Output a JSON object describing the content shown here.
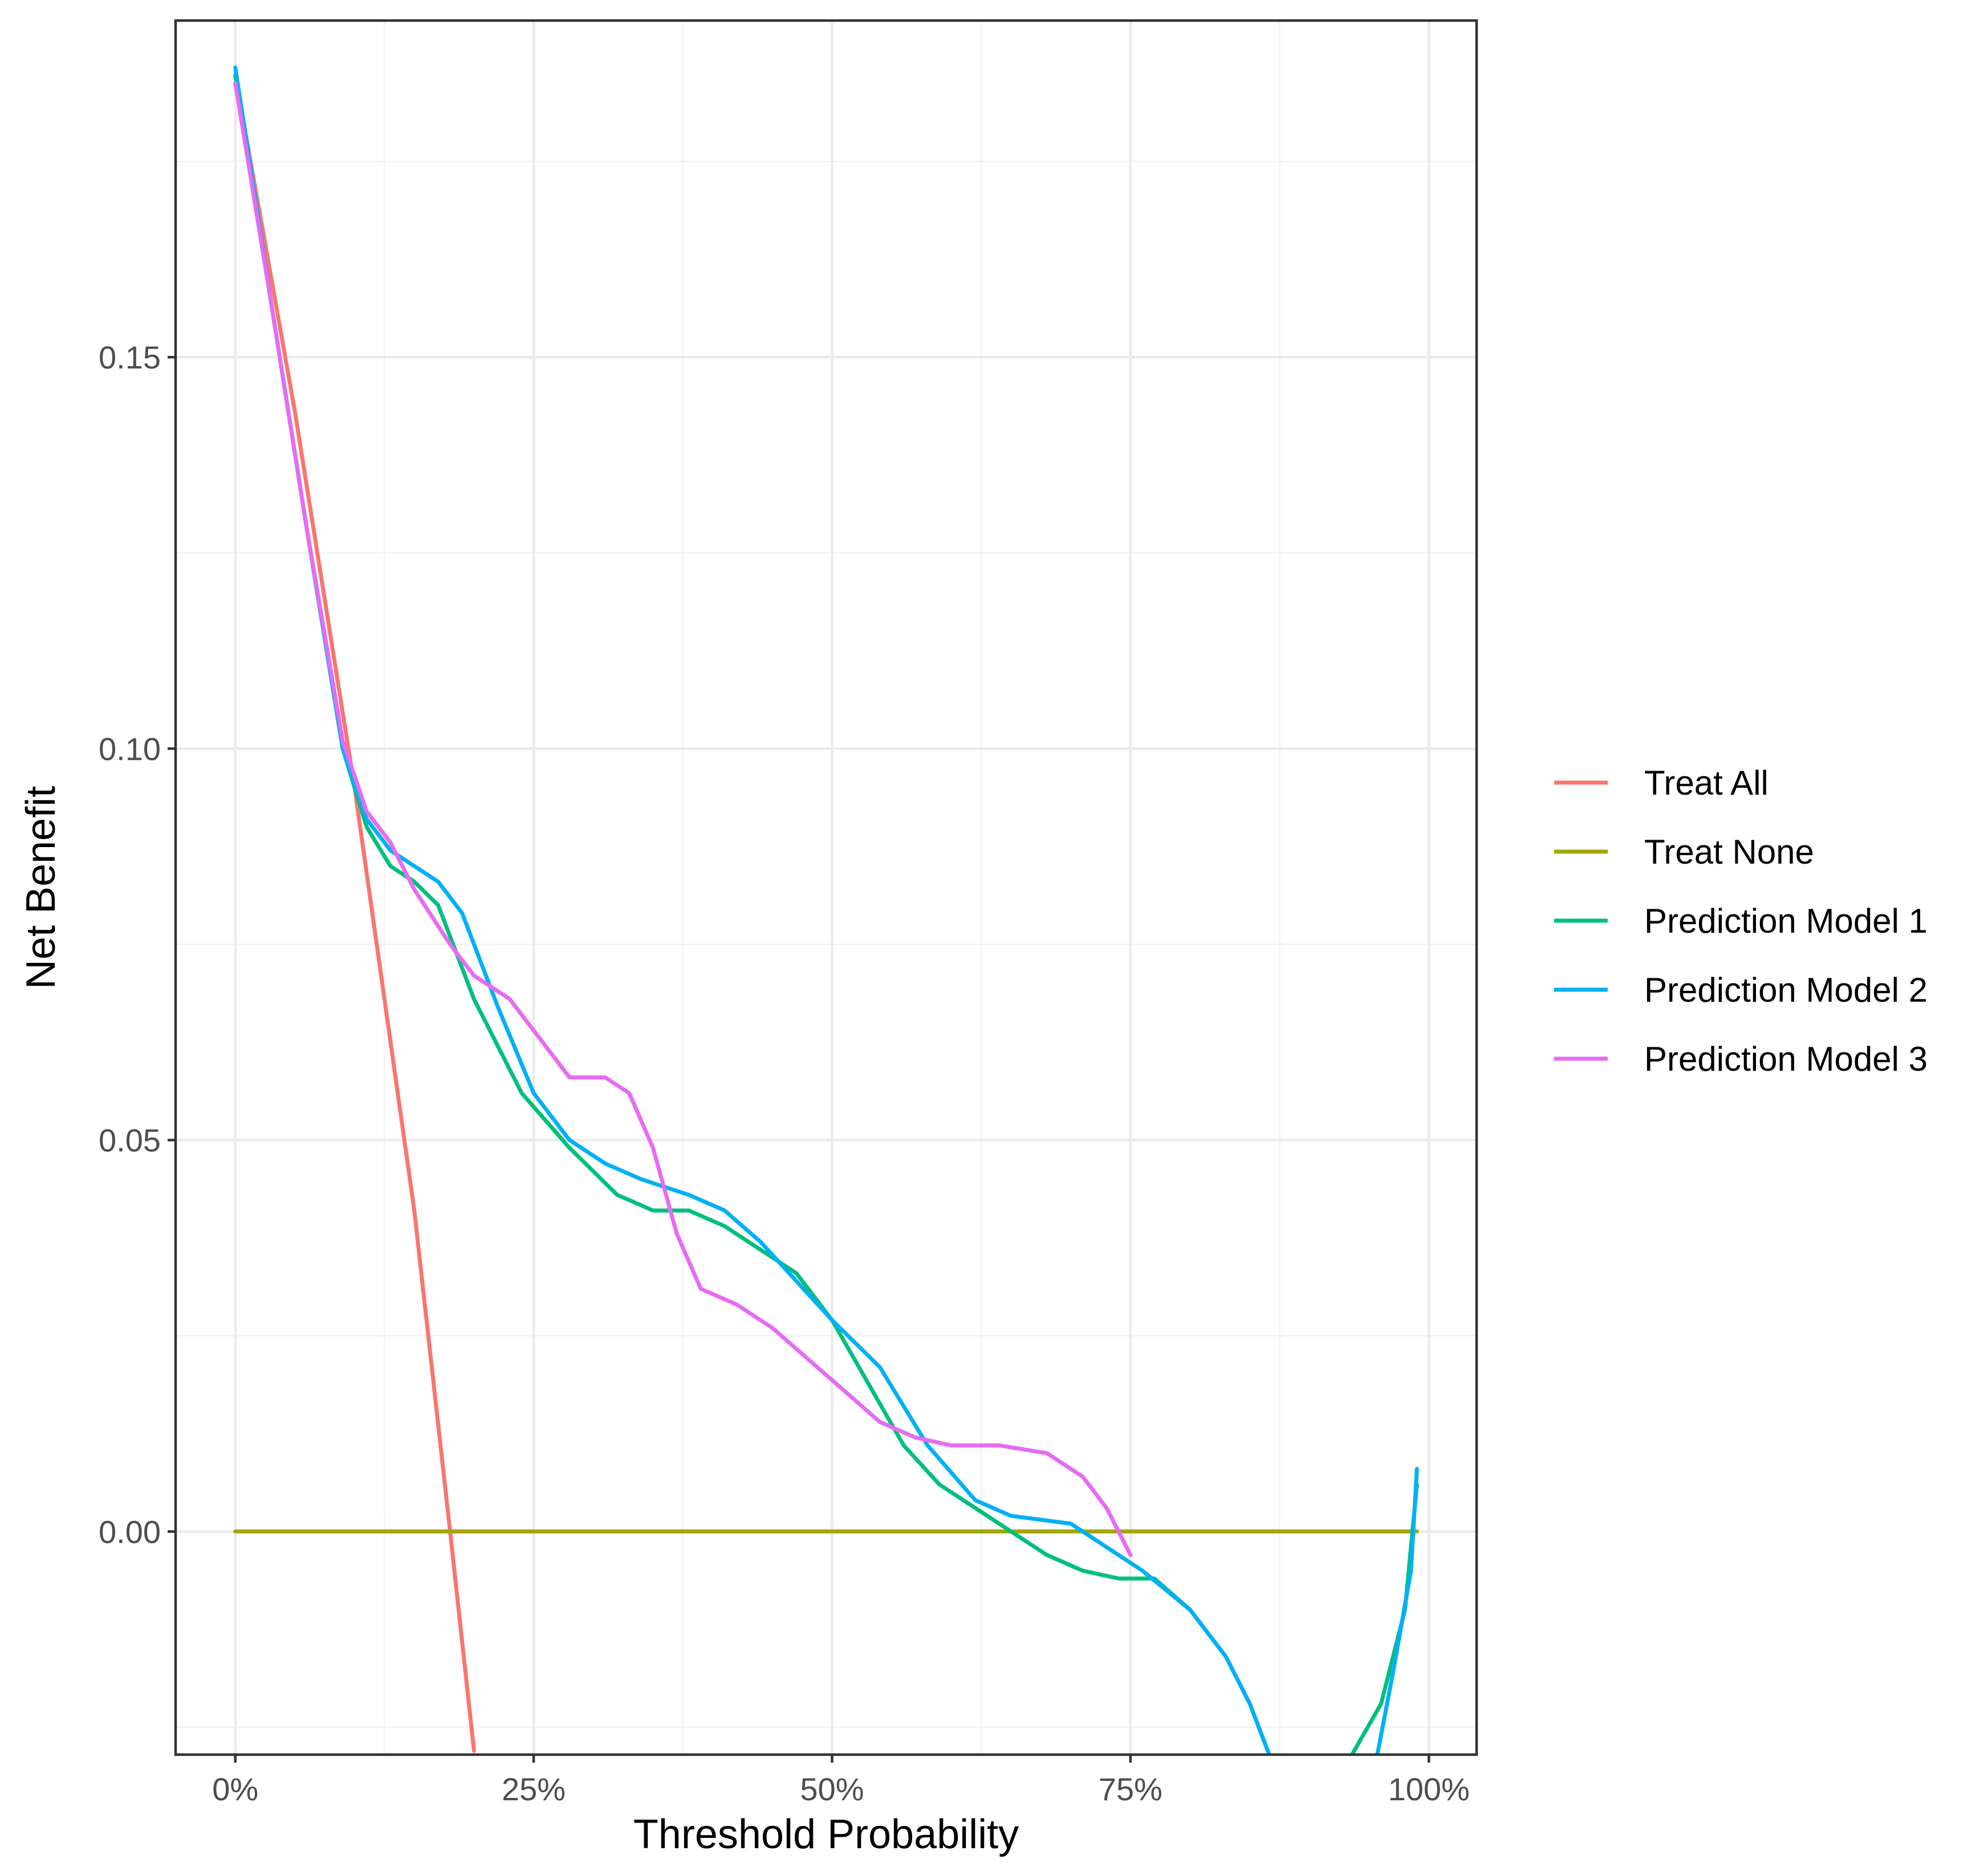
{
  "chart_data": {
    "type": "line",
    "xlabel": "Threshold Probability",
    "ylabel": "Net Benefit",
    "xlim": [
      -0.05,
      1.04
    ],
    "ylim": [
      -0.0285,
      0.193
    ],
    "x_ticks": [
      0,
      0.25,
      0.5,
      0.75,
      1.0
    ],
    "x_tick_labels": [
      "0%",
      "25%",
      "50%",
      "75%",
      "100%"
    ],
    "y_ticks": [
      0,
      0.05,
      0.1,
      0.15
    ],
    "y_tick_labels": [
      "0.00",
      "0.05",
      "0.10",
      "0.15"
    ],
    "grid": true,
    "legend_position": "right",
    "series": [
      {
        "name": "Treat All",
        "color": "#F8766D",
        "x": [
          0,
          0.05,
          0.1,
          0.15,
          0.18,
          0.2
        ],
        "y": [
          0.186,
          0.143,
          0.095,
          0.041,
          0.0,
          -0.028
        ]
      },
      {
        "name": "Treat None",
        "color": "#A3A500",
        "x": [
          0,
          0.99
        ],
        "y": [
          0,
          0
        ]
      },
      {
        "name": "Prediction Model 1",
        "color": "#00BF7D",
        "x": [
          0,
          0.03,
          0.06,
          0.09,
          0.11,
          0.13,
          0.15,
          0.17,
          0.2,
          0.24,
          0.28,
          0.32,
          0.35,
          0.38,
          0.41,
          0.44,
          0.47,
          0.5,
          0.53,
          0.56,
          0.59,
          0.62,
          0.65,
          0.68,
          0.71,
          0.74,
          0.77,
          0.8,
          0.83,
          0.85,
          0.87,
          0.93,
          0.96,
          0.98,
          0.99
        ],
        "y": [
          0.186,
          0.157,
          0.128,
          0.1,
          0.09,
          0.085,
          0.083,
          0.08,
          0.068,
          0.056,
          0.049,
          0.043,
          0.041,
          0.041,
          0.039,
          0.036,
          0.033,
          0.027,
          0.019,
          0.011,
          0.006,
          0.003,
          0.0,
          -0.003,
          -0.005,
          -0.006,
          -0.006,
          -0.01,
          -0.016,
          -0.022,
          -0.03,
          -0.03,
          -0.022,
          -0.01,
          0.006
        ]
      },
      {
        "name": "Prediction Model 2",
        "color": "#00B0F6",
        "x": [
          0,
          0.03,
          0.06,
          0.09,
          0.11,
          0.13,
          0.15,
          0.17,
          0.19,
          0.22,
          0.25,
          0.28,
          0.31,
          0.34,
          0.38,
          0.41,
          0.44,
          0.47,
          0.5,
          0.54,
          0.58,
          0.62,
          0.65,
          0.7,
          0.73,
          0.76,
          0.8,
          0.83,
          0.85,
          0.87,
          0.955,
          0.97,
          0.985,
          0.99
        ],
        "y": [
          0.187,
          0.157,
          0.128,
          0.1,
          0.091,
          0.087,
          0.085,
          0.083,
          0.079,
          0.067,
          0.056,
          0.05,
          0.047,
          0.045,
          0.043,
          0.041,
          0.037,
          0.032,
          0.027,
          0.021,
          0.011,
          0.004,
          0.002,
          0.001,
          -0.002,
          -0.005,
          -0.01,
          -0.016,
          -0.022,
          -0.03,
          -0.03,
          -0.018,
          -0.005,
          0.008
        ]
      },
      {
        "name": "Prediction Model 3",
        "color": "#E76BF3",
        "x": [
          0,
          0.03,
          0.06,
          0.09,
          0.11,
          0.13,
          0.15,
          0.18,
          0.2,
          0.23,
          0.25,
          0.28,
          0.31,
          0.33,
          0.35,
          0.37,
          0.39,
          0.42,
          0.45,
          0.48,
          0.51,
          0.54,
          0.57,
          0.6,
          0.64,
          0.68,
          0.71,
          0.73,
          0.75
        ],
        "y": [
          0.185,
          0.157,
          0.128,
          0.101,
          0.092,
          0.088,
          0.082,
          0.075,
          0.071,
          0.068,
          0.064,
          0.058,
          0.058,
          0.056,
          0.049,
          0.038,
          0.031,
          0.029,
          0.026,
          0.022,
          0.018,
          0.014,
          0.012,
          0.011,
          0.011,
          0.01,
          0.007,
          0.003,
          -0.003
        ]
      }
    ]
  }
}
